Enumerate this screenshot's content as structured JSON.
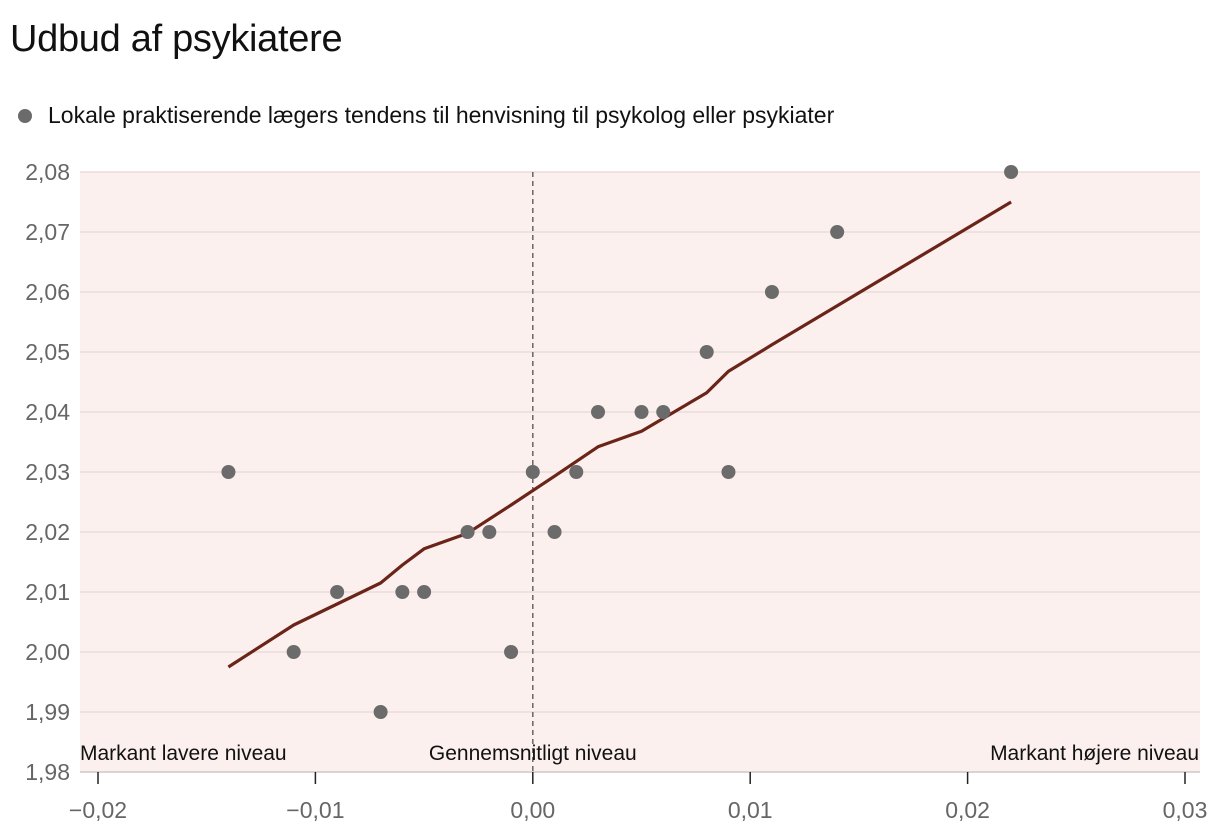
{
  "title": "Udbud af psykiatere",
  "legend": {
    "label": "Lokale praktiserende lægers tendens til henvisning til psykolog eller psykiater",
    "color": "#6b6b6b"
  },
  "colors": {
    "plot_background": "#fbf0ee",
    "gridline": "#e9dcda",
    "point": "#6b6b6b",
    "trend_line": "#6b2418",
    "reference_line": "#666666"
  },
  "chart_data": {
    "type": "scatter",
    "xlim": [
      -0.02,
      0.03
    ],
    "ylim": [
      1.98,
      2.08
    ],
    "x_ticks": [
      -0.02,
      -0.01,
      0.0,
      0.01,
      0.02,
      0.03
    ],
    "x_tick_labels": [
      "−0,02",
      "−0,01",
      "0,00",
      "0,01",
      "0,02",
      "0,03"
    ],
    "y_ticks": [
      1.98,
      1.99,
      2.0,
      2.01,
      2.02,
      2.03,
      2.04,
      2.05,
      2.06,
      2.07,
      2.08
    ],
    "y_tick_labels": [
      "1,98",
      "1,99",
      "2,00",
      "2,01",
      "2,02",
      "2,03",
      "2,04",
      "2,05",
      "2,06",
      "2,07",
      "2,08"
    ],
    "grid": "horizontal",
    "points": [
      {
        "x": -0.014,
        "y": 2.03
      },
      {
        "x": -0.011,
        "y": 2.0
      },
      {
        "x": -0.009,
        "y": 2.01
      },
      {
        "x": -0.007,
        "y": 1.99
      },
      {
        "x": -0.006,
        "y": 2.01
      },
      {
        "x": -0.005,
        "y": 2.01
      },
      {
        "x": -0.003,
        "y": 2.02
      },
      {
        "x": -0.002,
        "y": 2.02
      },
      {
        "x": -0.001,
        "y": 2.0
      },
      {
        "x": 0.0,
        "y": 2.03
      },
      {
        "x": 0.001,
        "y": 2.02
      },
      {
        "x": 0.002,
        "y": 2.03
      },
      {
        "x": 0.003,
        "y": 2.04
      },
      {
        "x": 0.005,
        "y": 2.04
      },
      {
        "x": 0.006,
        "y": 2.04
      },
      {
        "x": 0.008,
        "y": 2.05
      },
      {
        "x": 0.009,
        "y": 2.03
      },
      {
        "x": 0.011,
        "y": 2.06
      },
      {
        "x": 0.014,
        "y": 2.07
      },
      {
        "x": 0.022,
        "y": 2.08
      }
    ],
    "trend_line": [
      {
        "x": -0.014,
        "y": 1.9975
      },
      {
        "x": -0.011,
        "y": 2.0045
      },
      {
        "x": -0.007,
        "y": 2.0115
      },
      {
        "x": -0.006,
        "y": 2.0145
      },
      {
        "x": -0.005,
        "y": 2.0172
      },
      {
        "x": -0.003,
        "y": 2.0198
      },
      {
        "x": -0.001,
        "y": 2.0245
      },
      {
        "x": 0.001,
        "y": 2.0293
      },
      {
        "x": 0.003,
        "y": 2.0342
      },
      {
        "x": 0.005,
        "y": 2.0368
      },
      {
        "x": 0.008,
        "y": 2.0432
      },
      {
        "x": 0.009,
        "y": 2.0468
      },
      {
        "x": 0.011,
        "y": 2.0512
      },
      {
        "x": 0.022,
        "y": 2.075
      }
    ],
    "reference_x": 0.0,
    "annotations": {
      "left": "Markant lavere niveau",
      "center": "Gennemsnitligt niveau",
      "right": "Markant højere niveau"
    }
  }
}
